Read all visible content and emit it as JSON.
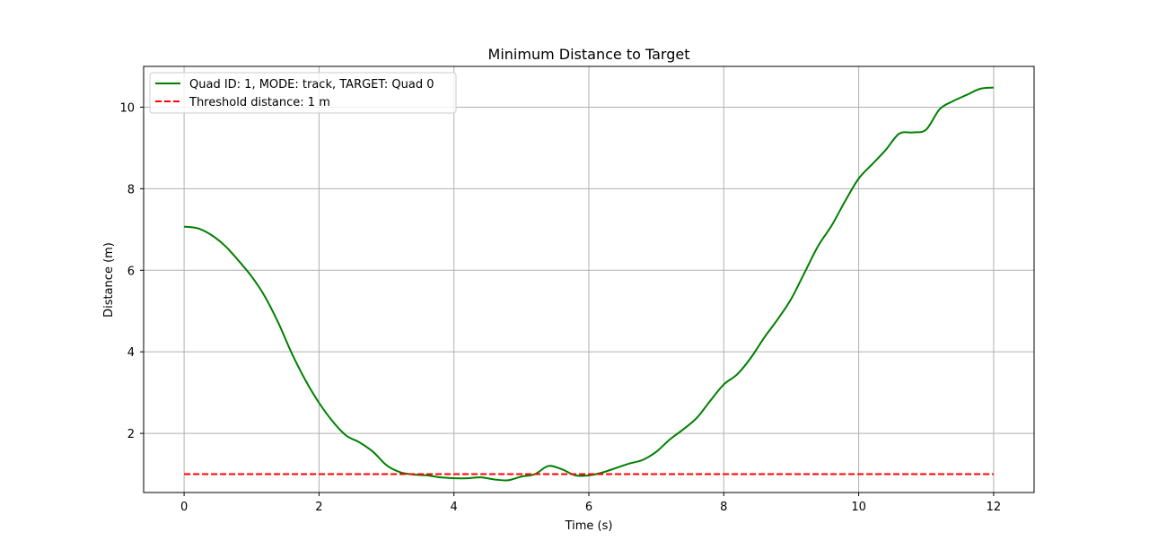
{
  "chart_data": {
    "type": "line",
    "title": "Minimum Distance to Target",
    "xlabel": "Time (s)",
    "ylabel": "Distance (m)",
    "xlim": [
      -0.6,
      12.6
    ],
    "ylim": [
      0.55,
      11.0
    ],
    "xticks": [
      0,
      2,
      4,
      6,
      8,
      10,
      12
    ],
    "yticks": [
      2,
      4,
      6,
      8,
      10
    ],
    "grid": true,
    "legend_position": "top-left",
    "series": [
      {
        "name": "Quad ID: 1, MODE: track, TARGET: Quad 0",
        "color": "#008000",
        "style": "solid",
        "x": [
          0,
          0.2,
          0.4,
          0.6,
          0.8,
          1.0,
          1.2,
          1.4,
          1.6,
          1.8,
          2.0,
          2.2,
          2.4,
          2.6,
          2.8,
          3.0,
          3.2,
          3.4,
          3.6,
          3.8,
          4.0,
          4.2,
          4.4,
          4.6,
          4.8,
          5.0,
          5.2,
          5.4,
          5.6,
          5.8,
          6.0,
          6.2,
          6.4,
          6.6,
          6.8,
          7.0,
          7.2,
          7.4,
          7.6,
          7.8,
          8.0,
          8.2,
          8.4,
          8.6,
          8.8,
          9.0,
          9.2,
          9.4,
          9.6,
          9.8,
          10.0,
          10.2,
          10.4,
          10.6,
          10.8,
          11.0,
          11.2,
          11.4,
          11.6,
          11.8,
          12.0
        ],
        "y": [
          7.07,
          7.03,
          6.87,
          6.61,
          6.25,
          5.85,
          5.35,
          4.7,
          3.95,
          3.3,
          2.75,
          2.3,
          1.95,
          1.78,
          1.55,
          1.22,
          1.05,
          0.99,
          0.97,
          0.92,
          0.9,
          0.9,
          0.92,
          0.87,
          0.85,
          0.94,
          1.0,
          1.2,
          1.12,
          0.97,
          0.97,
          1.04,
          1.15,
          1.26,
          1.35,
          1.55,
          1.85,
          2.1,
          2.38,
          2.8,
          3.2,
          3.45,
          3.85,
          4.35,
          4.8,
          5.3,
          5.95,
          6.6,
          7.1,
          7.7,
          8.25,
          8.6,
          8.95,
          9.35,
          9.38,
          9.45,
          9.95,
          10.15,
          10.3,
          10.45,
          10.48
        ]
      },
      {
        "name": "Threshold distance: 1 m",
        "color": "#ff0000",
        "style": "dashed",
        "x": [
          0,
          12
        ],
        "y": [
          1,
          1
        ]
      }
    ]
  }
}
